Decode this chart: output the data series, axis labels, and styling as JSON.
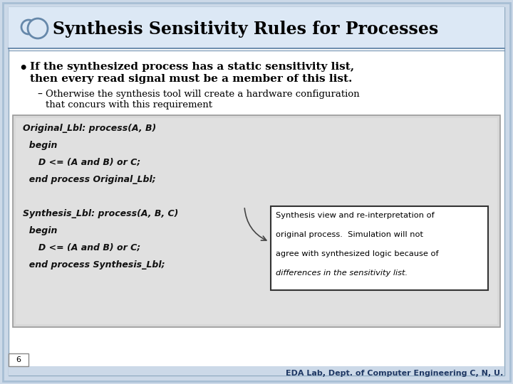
{
  "title": "Synthesis Sensitivity Rules for Processes",
  "background_color": "#ccd9e8",
  "header_bar_color": "#dce8f5",
  "bullet_text_line1": "If the synthesized process has a static sensitivity list,",
  "bullet_text_line2": "then every read signal must be a member of this list.",
  "sub_bullet_line1": "Otherwise the synthesis tool will create a hardware configuration",
  "sub_bullet_line2": "that concurs with this requirement",
  "code_lines": [
    "Original_Lbl: process(A, B)",
    "  begin",
    "     D <= (A and B) or C;",
    "  end process Original_Lbl;",
    "",
    "Synthesis_Lbl: process(A, B, C)",
    "  begin",
    "     D <= (A and B) or C;",
    "  end process Synthesis_Lbl;"
  ],
  "annotation_lines": [
    "Synthesis view and re-interpretation of",
    "original process.  Simulation will not",
    "agree with synthesized logic because of",
    "differences in the sensitivity list."
  ],
  "footer": "EDA Lab, Dept. of Computer Engineering C, N, U.",
  "page_number": "6",
  "title_color": "#000000",
  "footer_color": "#1f3864"
}
